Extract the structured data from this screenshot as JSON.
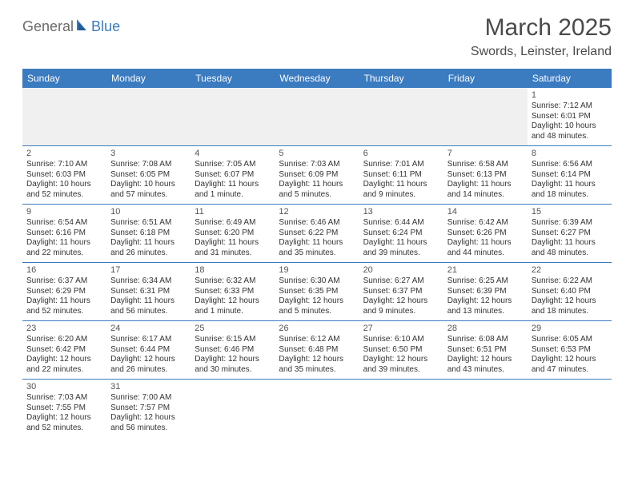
{
  "logo": {
    "text1": "General",
    "text2": "Blue"
  },
  "title": "March 2025",
  "location": "Swords, Leinster, Ireland",
  "colors": {
    "header_bg": "#3b7bc0",
    "header_text": "#ffffff",
    "cell_border": "#3b7bc0",
    "body_text": "#333333",
    "title_text": "#4a4a4a",
    "logo_gray": "#6b6b6b",
    "logo_blue": "#3b7bc0",
    "empty_bg": "#f0f0f0"
  },
  "day_headers": [
    "Sunday",
    "Monday",
    "Tuesday",
    "Wednesday",
    "Thursday",
    "Friday",
    "Saturday"
  ],
  "weeks": [
    [
      null,
      null,
      null,
      null,
      null,
      null,
      {
        "d": "1",
        "sr": "Sunrise: 7:12 AM",
        "ss": "Sunset: 6:01 PM",
        "dl1": "Daylight: 10 hours",
        "dl2": "and 48 minutes."
      }
    ],
    [
      {
        "d": "2",
        "sr": "Sunrise: 7:10 AM",
        "ss": "Sunset: 6:03 PM",
        "dl1": "Daylight: 10 hours",
        "dl2": "and 52 minutes."
      },
      {
        "d": "3",
        "sr": "Sunrise: 7:08 AM",
        "ss": "Sunset: 6:05 PM",
        "dl1": "Daylight: 10 hours",
        "dl2": "and 57 minutes."
      },
      {
        "d": "4",
        "sr": "Sunrise: 7:05 AM",
        "ss": "Sunset: 6:07 PM",
        "dl1": "Daylight: 11 hours",
        "dl2": "and 1 minute."
      },
      {
        "d": "5",
        "sr": "Sunrise: 7:03 AM",
        "ss": "Sunset: 6:09 PM",
        "dl1": "Daylight: 11 hours",
        "dl2": "and 5 minutes."
      },
      {
        "d": "6",
        "sr": "Sunrise: 7:01 AM",
        "ss": "Sunset: 6:11 PM",
        "dl1": "Daylight: 11 hours",
        "dl2": "and 9 minutes."
      },
      {
        "d": "7",
        "sr": "Sunrise: 6:58 AM",
        "ss": "Sunset: 6:13 PM",
        "dl1": "Daylight: 11 hours",
        "dl2": "and 14 minutes."
      },
      {
        "d": "8",
        "sr": "Sunrise: 6:56 AM",
        "ss": "Sunset: 6:14 PM",
        "dl1": "Daylight: 11 hours",
        "dl2": "and 18 minutes."
      }
    ],
    [
      {
        "d": "9",
        "sr": "Sunrise: 6:54 AM",
        "ss": "Sunset: 6:16 PM",
        "dl1": "Daylight: 11 hours",
        "dl2": "and 22 minutes."
      },
      {
        "d": "10",
        "sr": "Sunrise: 6:51 AM",
        "ss": "Sunset: 6:18 PM",
        "dl1": "Daylight: 11 hours",
        "dl2": "and 26 minutes."
      },
      {
        "d": "11",
        "sr": "Sunrise: 6:49 AM",
        "ss": "Sunset: 6:20 PM",
        "dl1": "Daylight: 11 hours",
        "dl2": "and 31 minutes."
      },
      {
        "d": "12",
        "sr": "Sunrise: 6:46 AM",
        "ss": "Sunset: 6:22 PM",
        "dl1": "Daylight: 11 hours",
        "dl2": "and 35 minutes."
      },
      {
        "d": "13",
        "sr": "Sunrise: 6:44 AM",
        "ss": "Sunset: 6:24 PM",
        "dl1": "Daylight: 11 hours",
        "dl2": "and 39 minutes."
      },
      {
        "d": "14",
        "sr": "Sunrise: 6:42 AM",
        "ss": "Sunset: 6:26 PM",
        "dl1": "Daylight: 11 hours",
        "dl2": "and 44 minutes."
      },
      {
        "d": "15",
        "sr": "Sunrise: 6:39 AM",
        "ss": "Sunset: 6:27 PM",
        "dl1": "Daylight: 11 hours",
        "dl2": "and 48 minutes."
      }
    ],
    [
      {
        "d": "16",
        "sr": "Sunrise: 6:37 AM",
        "ss": "Sunset: 6:29 PM",
        "dl1": "Daylight: 11 hours",
        "dl2": "and 52 minutes."
      },
      {
        "d": "17",
        "sr": "Sunrise: 6:34 AM",
        "ss": "Sunset: 6:31 PM",
        "dl1": "Daylight: 11 hours",
        "dl2": "and 56 minutes."
      },
      {
        "d": "18",
        "sr": "Sunrise: 6:32 AM",
        "ss": "Sunset: 6:33 PM",
        "dl1": "Daylight: 12 hours",
        "dl2": "and 1 minute."
      },
      {
        "d": "19",
        "sr": "Sunrise: 6:30 AM",
        "ss": "Sunset: 6:35 PM",
        "dl1": "Daylight: 12 hours",
        "dl2": "and 5 minutes."
      },
      {
        "d": "20",
        "sr": "Sunrise: 6:27 AM",
        "ss": "Sunset: 6:37 PM",
        "dl1": "Daylight: 12 hours",
        "dl2": "and 9 minutes."
      },
      {
        "d": "21",
        "sr": "Sunrise: 6:25 AM",
        "ss": "Sunset: 6:39 PM",
        "dl1": "Daylight: 12 hours",
        "dl2": "and 13 minutes."
      },
      {
        "d": "22",
        "sr": "Sunrise: 6:22 AM",
        "ss": "Sunset: 6:40 PM",
        "dl1": "Daylight: 12 hours",
        "dl2": "and 18 minutes."
      }
    ],
    [
      {
        "d": "23",
        "sr": "Sunrise: 6:20 AM",
        "ss": "Sunset: 6:42 PM",
        "dl1": "Daylight: 12 hours",
        "dl2": "and 22 minutes."
      },
      {
        "d": "24",
        "sr": "Sunrise: 6:17 AM",
        "ss": "Sunset: 6:44 PM",
        "dl1": "Daylight: 12 hours",
        "dl2": "and 26 minutes."
      },
      {
        "d": "25",
        "sr": "Sunrise: 6:15 AM",
        "ss": "Sunset: 6:46 PM",
        "dl1": "Daylight: 12 hours",
        "dl2": "and 30 minutes."
      },
      {
        "d": "26",
        "sr": "Sunrise: 6:12 AM",
        "ss": "Sunset: 6:48 PM",
        "dl1": "Daylight: 12 hours",
        "dl2": "and 35 minutes."
      },
      {
        "d": "27",
        "sr": "Sunrise: 6:10 AM",
        "ss": "Sunset: 6:50 PM",
        "dl1": "Daylight: 12 hours",
        "dl2": "and 39 minutes."
      },
      {
        "d": "28",
        "sr": "Sunrise: 6:08 AM",
        "ss": "Sunset: 6:51 PM",
        "dl1": "Daylight: 12 hours",
        "dl2": "and 43 minutes."
      },
      {
        "d": "29",
        "sr": "Sunrise: 6:05 AM",
        "ss": "Sunset: 6:53 PM",
        "dl1": "Daylight: 12 hours",
        "dl2": "and 47 minutes."
      }
    ],
    [
      {
        "d": "30",
        "sr": "Sunrise: 7:03 AM",
        "ss": "Sunset: 7:55 PM",
        "dl1": "Daylight: 12 hours",
        "dl2": "and 52 minutes."
      },
      {
        "d": "31",
        "sr": "Sunrise: 7:00 AM",
        "ss": "Sunset: 7:57 PM",
        "dl1": "Daylight: 12 hours",
        "dl2": "and 56 minutes."
      },
      null,
      null,
      null,
      null,
      null
    ]
  ]
}
